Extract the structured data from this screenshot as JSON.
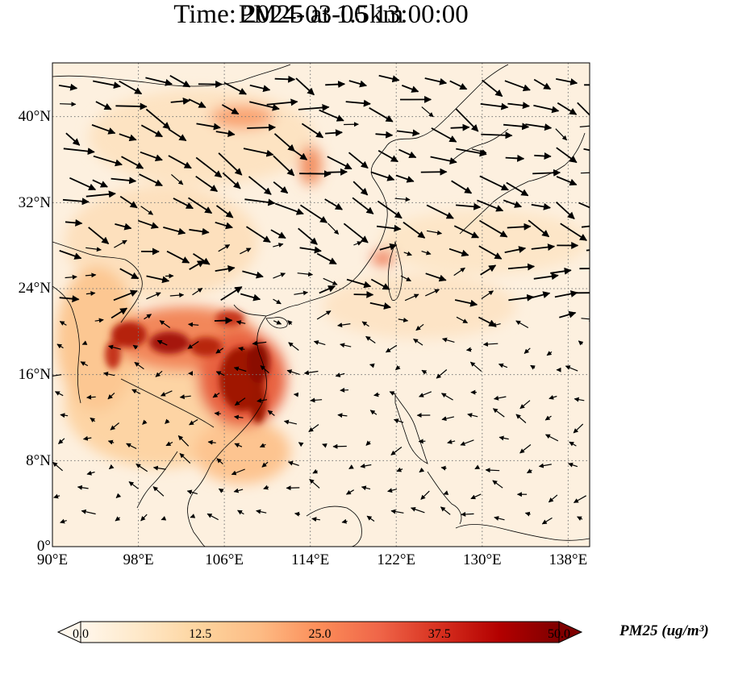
{
  "title_line1": "PM25 at 1.5km",
  "title_line2": "Time: 2024-03-06 13:00:00",
  "map": {
    "lon_range": [
      90,
      140
    ],
    "lat_range": [
      0,
      45
    ],
    "lon_ticks": [
      "90°E",
      "98°E",
      "106°E",
      "114°E",
      "122°E",
      "130°E",
      "138°E"
    ],
    "lat_ticks": [
      "0°",
      "8°N",
      "16°N",
      "24°N",
      "32°N",
      "40°N"
    ],
    "gridlines": true,
    "field": "PM25 concentration",
    "overlay": "wind vectors (arrows)"
  },
  "colorbar": {
    "label": "PM25 (ug/m³)",
    "min": 0.0,
    "max": 50.0,
    "ticks": [
      "0.0",
      "12.5",
      "25.0",
      "37.5",
      "50.0"
    ],
    "colormap": "OrRd",
    "colors": [
      "#fff7ec",
      "#fee8c8",
      "#fdd49e",
      "#fdbb84",
      "#fc8d59",
      "#ef6548",
      "#d7301f",
      "#b30000",
      "#7f0000"
    ],
    "extend": "both"
  }
}
